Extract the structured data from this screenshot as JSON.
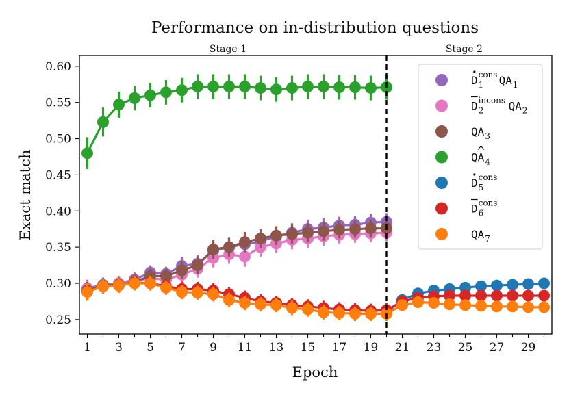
{
  "chart_data": {
    "type": "line",
    "title": "Performance on in-distribution questions",
    "xlabel": "Epoch",
    "ylabel": "Exact match",
    "xlim": [
      0.5,
      30.5
    ],
    "ylim": [
      0.23,
      0.615
    ],
    "x_tick_labels": [
      "1",
      "3",
      "5",
      "7",
      "9",
      "11",
      "13",
      "15",
      "17",
      "19",
      "21",
      "23",
      "25",
      "27",
      "29"
    ],
    "y_tick_labels": [
      "0.25",
      "0.30",
      "0.35",
      "0.40",
      "0.45",
      "0.50",
      "0.55",
      "0.60"
    ],
    "stage_labels": [
      "Stage 1",
      "Stage 2"
    ],
    "stage_boundary": 20,
    "legend_position": "top-right",
    "series": [
      {
        "name": "D1consQA1",
        "legend": {
          "base": "D",
          "accent": "dot",
          "sub": "1",
          "sup": "cons",
          "suffix": "QA",
          "suffix_sub": "1"
        },
        "color": "#9467bd",
        "x": [
          1,
          2,
          3,
          4,
          5,
          6,
          7,
          8,
          9,
          10,
          11,
          12,
          13,
          14,
          15,
          16,
          17,
          18,
          19,
          20
        ],
        "values": [
          0.293,
          0.298,
          0.3,
          0.305,
          0.315,
          0.313,
          0.324,
          0.327,
          0.345,
          0.35,
          0.354,
          0.358,
          0.365,
          0.37,
          0.375,
          0.377,
          0.38,
          0.381,
          0.384,
          0.385
        ],
        "err": [
          0.012,
          0.01,
          0.01,
          0.01,
          0.01,
          0.01,
          0.012,
          0.012,
          0.013,
          0.013,
          0.014,
          0.013,
          0.013,
          0.013,
          0.013,
          0.013,
          0.012,
          0.012,
          0.012,
          0.012
        ]
      },
      {
        "name": "D2inconsQA2",
        "legend": {
          "base": "D",
          "accent": "bar",
          "sub": "2",
          "sup": "incons",
          "suffix": "QA",
          "suffix_sub": "2"
        },
        "color": "#e377c2",
        "x": [
          1,
          2,
          3,
          4,
          5,
          6,
          7,
          8,
          9,
          10,
          11,
          12,
          13,
          14,
          15,
          16,
          17,
          18,
          19,
          20
        ],
        "values": [
          0.292,
          0.296,
          0.3,
          0.303,
          0.307,
          0.305,
          0.312,
          0.32,
          0.335,
          0.34,
          0.337,
          0.35,
          0.355,
          0.36,
          0.362,
          0.365,
          0.367,
          0.368,
          0.369,
          0.37
        ],
        "err": [
          0.012,
          0.01,
          0.01,
          0.01,
          0.01,
          0.01,
          0.012,
          0.012,
          0.013,
          0.013,
          0.014,
          0.013,
          0.013,
          0.013,
          0.013,
          0.013,
          0.012,
          0.012,
          0.012,
          0.012
        ]
      },
      {
        "name": "QA3",
        "legend": {
          "base": "QA",
          "accent": "",
          "sub": "3",
          "sup": "",
          "suffix": "",
          "suffix_sub": ""
        },
        "color": "#8c564b",
        "x": [
          1,
          2,
          3,
          4,
          5,
          6,
          7,
          8,
          9,
          10,
          11,
          12,
          13,
          14,
          15,
          16,
          17,
          18,
          19,
          20
        ],
        "values": [
          0.29,
          0.297,
          0.298,
          0.302,
          0.31,
          0.31,
          0.318,
          0.325,
          0.347,
          0.35,
          0.357,
          0.362,
          0.366,
          0.368,
          0.37,
          0.372,
          0.374,
          0.375,
          0.376,
          0.376
        ],
        "err": [
          0.012,
          0.01,
          0.01,
          0.01,
          0.01,
          0.01,
          0.012,
          0.012,
          0.013,
          0.013,
          0.014,
          0.013,
          0.013,
          0.013,
          0.013,
          0.013,
          0.012,
          0.012,
          0.012,
          0.012
        ]
      },
      {
        "name": "QA4hat",
        "legend": {
          "base": "QA",
          "accent": "hat",
          "sub": "4",
          "sup": "",
          "suffix": "",
          "suffix_sub": ""
        },
        "color": "#2ca02c",
        "x": [
          1,
          2,
          3,
          4,
          5,
          6,
          7,
          8,
          9,
          10,
          11,
          12,
          13,
          14,
          15,
          16,
          17,
          18,
          19,
          20
        ],
        "values": [
          0.48,
          0.523,
          0.547,
          0.556,
          0.56,
          0.564,
          0.567,
          0.572,
          0.572,
          0.572,
          0.572,
          0.57,
          0.568,
          0.57,
          0.572,
          0.572,
          0.571,
          0.571,
          0.57,
          0.571
        ],
        "err": [
          0.022,
          0.02,
          0.018,
          0.017,
          0.017,
          0.017,
          0.017,
          0.017,
          0.017,
          0.017,
          0.017,
          0.017,
          0.017,
          0.017,
          0.017,
          0.017,
          0.017,
          0.017,
          0.017,
          0.017
        ]
      },
      {
        "name": "D5cons",
        "legend": {
          "base": "D",
          "accent": "dot",
          "sub": "5",
          "sup": "cons",
          "suffix": "",
          "suffix_sub": ""
        },
        "color": "#1f77b4",
        "x": [
          20,
          21,
          22,
          23,
          24,
          25,
          26,
          27,
          28,
          29,
          30
        ],
        "values": [
          0.26,
          0.277,
          0.286,
          0.29,
          0.292,
          0.294,
          0.296,
          0.297,
          0.298,
          0.299,
          0.3
        ],
        "err": [
          0.004,
          0.004,
          0.004,
          0.004,
          0.004,
          0.004,
          0.004,
          0.004,
          0.004,
          0.004,
          0.004
        ]
      },
      {
        "name": "D6cons",
        "legend": {
          "base": "D",
          "accent": "bar",
          "sub": "6",
          "sup": "cons",
          "suffix": "",
          "suffix_sub": ""
        },
        "color": "#d62728",
        "x": [
          1,
          2,
          3,
          4,
          5,
          6,
          7,
          8,
          9,
          10,
          11,
          12,
          13,
          14,
          15,
          16,
          17,
          18,
          19,
          20,
          21,
          22,
          23,
          24,
          25,
          26,
          27,
          28,
          29,
          30
        ],
        "values": [
          0.289,
          0.296,
          0.297,
          0.301,
          0.3,
          0.296,
          0.292,
          0.292,
          0.29,
          0.285,
          0.28,
          0.275,
          0.273,
          0.27,
          0.268,
          0.266,
          0.264,
          0.263,
          0.262,
          0.263,
          0.275,
          0.28,
          0.282,
          0.283,
          0.283,
          0.283,
          0.283,
          0.283,
          0.283,
          0.283
        ],
        "err": [
          0.012,
          0.01,
          0.01,
          0.01,
          0.01,
          0.01,
          0.01,
          0.01,
          0.01,
          0.01,
          0.01,
          0.01,
          0.01,
          0.01,
          0.01,
          0.01,
          0.01,
          0.01,
          0.01,
          0.01,
          0.004,
          0.004,
          0.004,
          0.004,
          0.004,
          0.004,
          0.004,
          0.004,
          0.004,
          0.004
        ]
      },
      {
        "name": "QA7",
        "legend": {
          "base": "QA",
          "accent": "",
          "sub": "7",
          "sup": "",
          "suffix": "",
          "suffix_sub": ""
        },
        "color": "#ff7f0e",
        "x": [
          1,
          2,
          3,
          4,
          5,
          6,
          7,
          8,
          9,
          10,
          11,
          12,
          13,
          14,
          15,
          16,
          17,
          18,
          19,
          20,
          21,
          22,
          23,
          24,
          25,
          26,
          27,
          28,
          29,
          30
        ],
        "values": [
          0.288,
          0.296,
          0.297,
          0.3,
          0.3,
          0.294,
          0.288,
          0.287,
          0.285,
          0.277,
          0.273,
          0.271,
          0.27,
          0.266,
          0.264,
          0.26,
          0.259,
          0.258,
          0.258,
          0.258,
          0.27,
          0.274,
          0.273,
          0.271,
          0.27,
          0.269,
          0.268,
          0.268,
          0.267,
          0.267
        ],
        "err": [
          0.012,
          0.01,
          0.01,
          0.01,
          0.01,
          0.01,
          0.01,
          0.01,
          0.01,
          0.01,
          0.01,
          0.01,
          0.01,
          0.01,
          0.01,
          0.01,
          0.01,
          0.01,
          0.01,
          0.01,
          0.004,
          0.004,
          0.004,
          0.004,
          0.004,
          0.004,
          0.004,
          0.004,
          0.004,
          0.004
        ]
      }
    ]
  }
}
